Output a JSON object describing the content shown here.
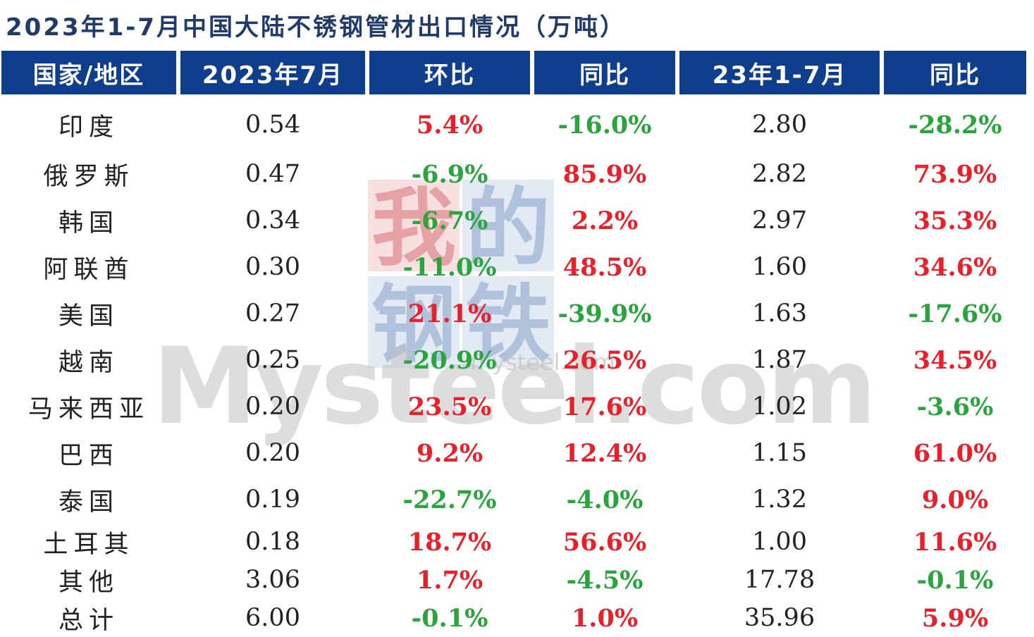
{
  "title": "2023年1-7月中国大陆不锈钢管材出口情况（万吨）",
  "watermark": {
    "chars": [
      "我",
      "的",
      "钢",
      "铁"
    ],
    "brand": "Mysteel.com",
    "small": "mysteel.com",
    "colors": {
      "red": "#e9a0a4",
      "blue": "#a9bcd8",
      "gray": "#c7c7c7"
    }
  },
  "colors": {
    "header_bg": "#0f3f8c",
    "positive": "#e8202a",
    "negative": "#2aa43c"
  },
  "table": {
    "headers": [
      "国家/地区",
      "2023年7月",
      "环比",
      "同比",
      "23年1-7月",
      "同比"
    ],
    "rows": [
      {
        "country": "印度",
        "jul": "0.54",
        "mom": "5.4%",
        "yoy": "-16.0%",
        "ytd": "2.80",
        "ytd_yoy": "-28.2%"
      },
      {
        "country": "俄罗斯",
        "jul": "0.47",
        "mom": "-6.9%",
        "yoy": "85.9%",
        "ytd": "2.82",
        "ytd_yoy": "73.9%"
      },
      {
        "country": "韩国",
        "jul": "0.34",
        "mom": "-6.7%",
        "yoy": "2.2%",
        "ytd": "2.97",
        "ytd_yoy": "35.3%"
      },
      {
        "country": "阿联酋",
        "jul": "0.30",
        "mom": "-11.0%",
        "yoy": "48.5%",
        "ytd": "1.60",
        "ytd_yoy": "34.6%"
      },
      {
        "country": "美国",
        "jul": "0.27",
        "mom": "21.1%",
        "yoy": "-39.9%",
        "ytd": "1.63",
        "ytd_yoy": "-17.6%"
      },
      {
        "country": "越南",
        "jul": "0.25",
        "mom": "-20.9%",
        "yoy": "26.5%",
        "ytd": "1.87",
        "ytd_yoy": "34.5%"
      },
      {
        "country": "马来西亚",
        "jul": "0.20",
        "mom": "23.5%",
        "yoy": "17.6%",
        "ytd": "1.02",
        "ytd_yoy": "-3.6%"
      },
      {
        "country": "巴西",
        "jul": "0.20",
        "mom": "9.2%",
        "yoy": "12.4%",
        "ytd": "1.15",
        "ytd_yoy": "61.0%"
      },
      {
        "country": "泰国",
        "jul": "0.19",
        "mom": "-22.7%",
        "yoy": "-4.0%",
        "ytd": "1.32",
        "ytd_yoy": "9.0%"
      },
      {
        "country": "土耳其",
        "jul": "0.18",
        "mom": "18.7%",
        "yoy": "56.6%",
        "ytd": "1.00",
        "ytd_yoy": "11.6%"
      },
      {
        "country": "其他",
        "jul": "3.06",
        "mom": "1.7%",
        "yoy": "-4.5%",
        "ytd": "17.78",
        "ytd_yoy": "-0.1%"
      },
      {
        "country": "总计",
        "jul": "6.00",
        "mom": "-0.1%",
        "yoy": "1.0%",
        "ytd": "35.96",
        "ytd_yoy": "5.9%"
      }
    ]
  }
}
